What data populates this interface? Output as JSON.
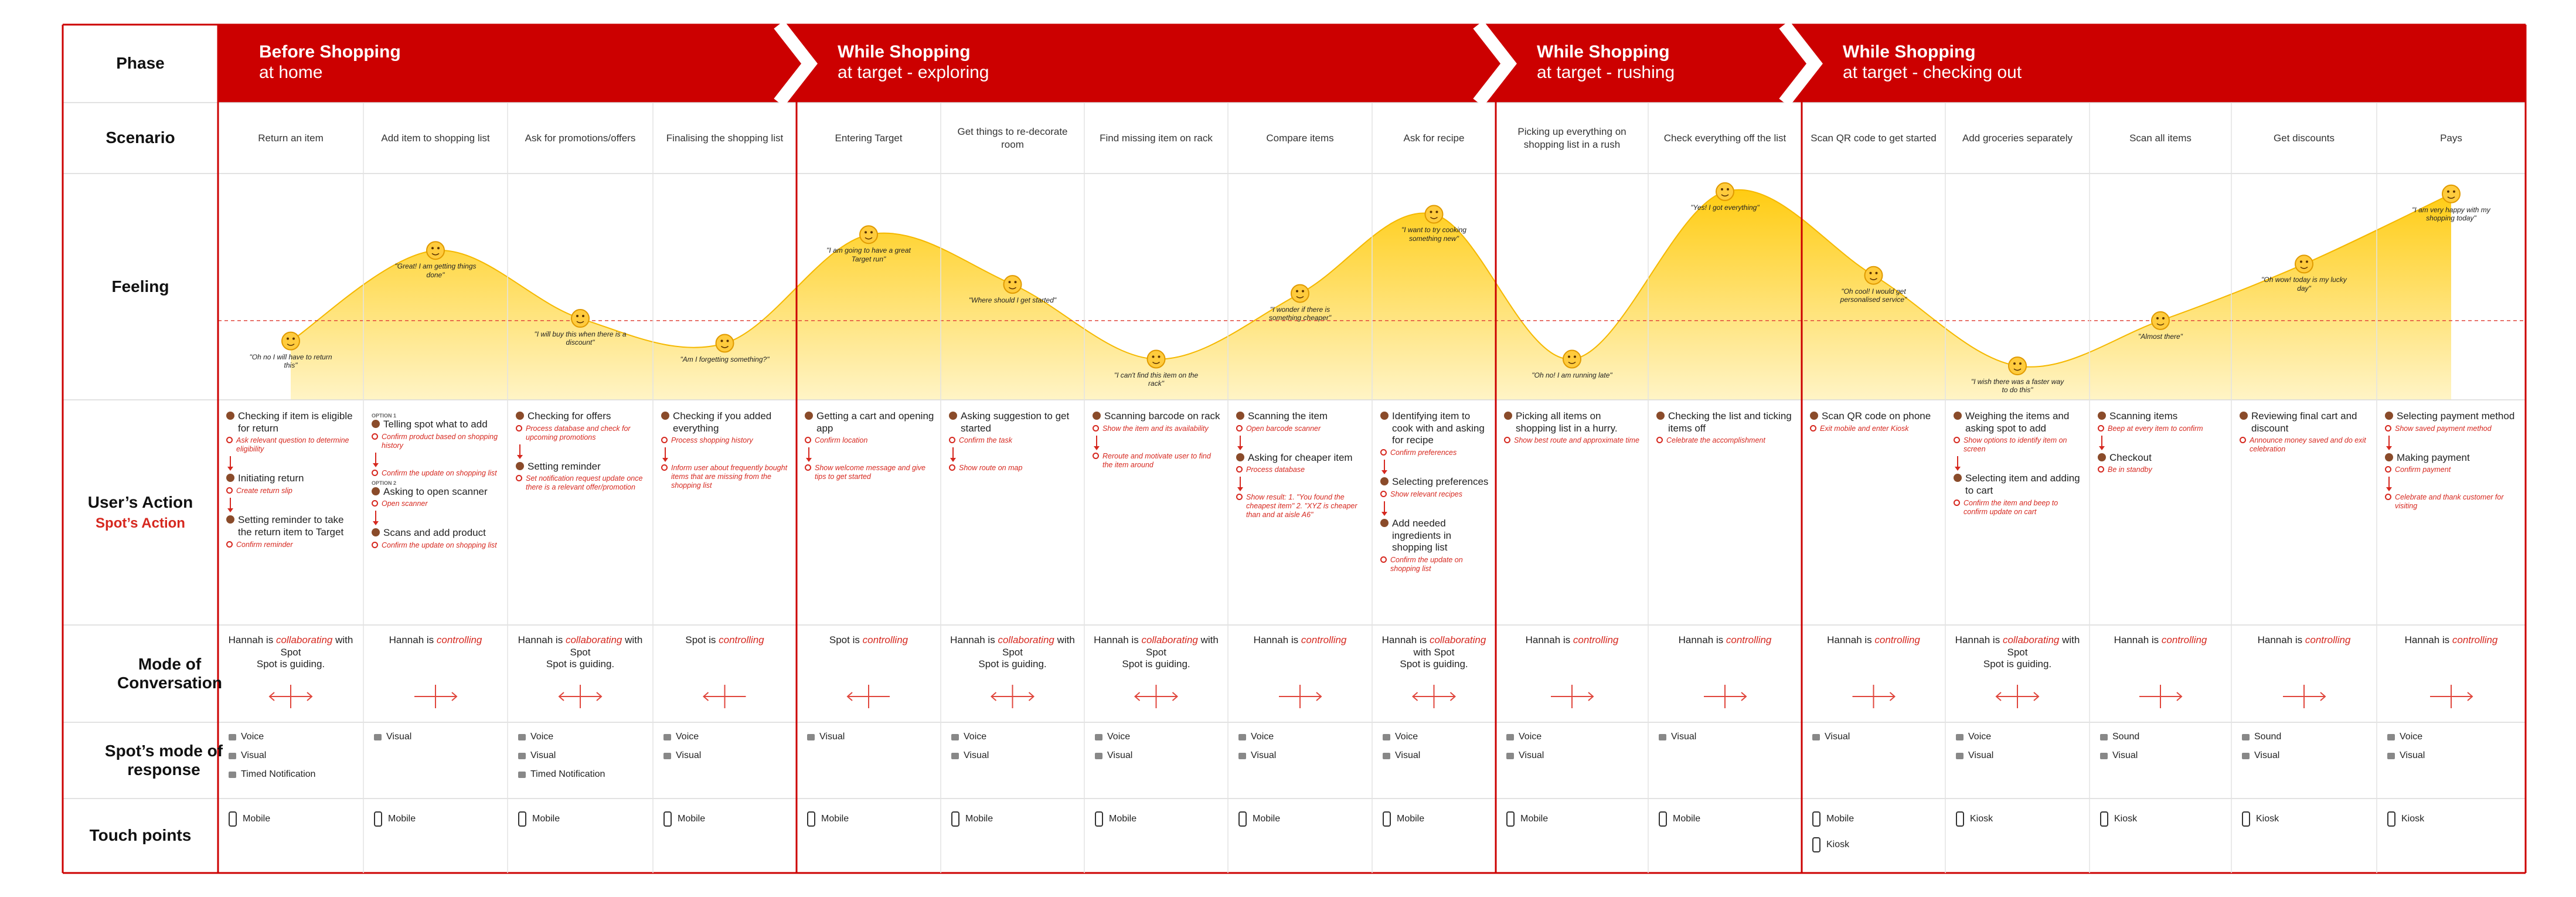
{
  "row_labels": {
    "phase": "Phase",
    "scenario": "Scenario",
    "feeling": "Feeling",
    "action": "User’s Action",
    "spot_action": "Spot’s Action",
    "mode": "Mode of Conversation",
    "response": "Spot’s mode of response",
    "touch": "Touch points"
  },
  "feeling_range": [
    0,
    100
  ],
  "feeling_baseline": 35,
  "phases": [
    {
      "title": "Before Shopping",
      "subtitle": "at home",
      "scenarios": [
        {
          "scenario": "Return an item",
          "feeling": {
            "score": 26,
            "quote": "\"Oh no I will have to return this\""
          },
          "actions": [
            {
              "action": "Checking if item is eligible for return",
              "spot": "Ask relevant question to determine eligibility"
            },
            {
              "action": "Initiating return",
              "spot": "Create return slip"
            },
            {
              "action": "Setting reminder to take the return item to Target",
              "spot": "Confirm reminder"
            }
          ],
          "mode": {
            "prefix": "Hannah is",
            "mode": "collaborating",
            "suffix": "with Spot",
            "note": "Spot is guiding.",
            "arrow": "both"
          },
          "responses": [
            "Voice",
            "Visual",
            "Timed Notification"
          ],
          "touchpoints": [
            "Mobile"
          ]
        },
        {
          "scenario": "Add item to shopping list",
          "feeling": {
            "score": 66,
            "quote": "\"Great! I am getting things done\""
          },
          "actions": [
            {
              "tag": "OPTION 1",
              "action": "Telling spot what to add",
              "spot": "Confirm product based on shopping history"
            },
            {
              "spot": "Confirm the update on shopping list"
            },
            {
              "tag": "OPTION 2",
              "action": "Asking to open scanner",
              "spot": "Open scanner"
            },
            {
              "action": "Scans and add product",
              "spot": "Confirm the update on shopping list"
            }
          ],
          "mode": {
            "prefix": "Hannah is",
            "mode": "controlling",
            "arrow": "right"
          },
          "responses": [
            "Visual"
          ],
          "touchpoints": [
            "Mobile"
          ]
        },
        {
          "scenario": "Ask for promotions/offers",
          "feeling": {
            "score": 36,
            "quote": "\"I will buy this when there is a discount\""
          },
          "actions": [
            {
              "action": "Checking for offers",
              "spot": "Process database and check for upcoming promotions"
            },
            {
              "action": "Setting reminder",
              "spot": "Set notification request update once there is a relevant offer/promotion"
            }
          ],
          "mode": {
            "prefix": "Hannah is",
            "mode": "collaborating",
            "suffix": "with Spot",
            "note": "Spot is guiding.",
            "arrow": "both"
          },
          "responses": [
            "Voice",
            "Visual",
            "Timed Notification"
          ],
          "touchpoints": [
            "Mobile"
          ]
        },
        {
          "scenario": "Finalising the shopping list",
          "feeling": {
            "score": 25,
            "quote": "\"Am I forgetting something?\""
          },
          "actions": [
            {
              "action": "Checking if you added everything",
              "spot": "Process shopping history"
            },
            {
              "spot": "Inform user about frequently bought items that are missing from the shopping list"
            }
          ],
          "mode": {
            "prefix": "Spot is",
            "mode": "controlling",
            "arrow": "left"
          },
          "responses": [
            "Voice",
            "Visual"
          ],
          "touchpoints": [
            "Mobile"
          ]
        }
      ]
    },
    {
      "title": "While Shopping",
      "subtitle": "at target - exploring",
      "scenarios": [
        {
          "scenario": "Entering Target",
          "feeling": {
            "score": 73,
            "quote": "\"I am going to have a great Target run\""
          },
          "actions": [
            {
              "action": "Getting a cart and opening app",
              "spot": "Confirm location"
            },
            {
              "spot": "Show welcome message and give tips to get started"
            }
          ],
          "mode": {
            "prefix": "Spot is",
            "mode": "controlling",
            "arrow": "left"
          },
          "responses": [
            "Visual"
          ],
          "touchpoints": [
            "Mobile"
          ]
        },
        {
          "scenario": "Get things to re-decorate room",
          "feeling": {
            "score": 51,
            "quote": "\"Where should I get started\""
          },
          "actions": [
            {
              "action": "Asking suggestion to get started",
              "spot": "Confirm the task"
            },
            {
              "spot": "Show route on map"
            }
          ],
          "mode": {
            "prefix": "Hannah is",
            "mode": "collaborating",
            "suffix": "with Spot",
            "note": "Spot is guiding.",
            "arrow": "both"
          },
          "responses": [
            "Voice",
            "Visual"
          ],
          "touchpoints": [
            "Mobile"
          ]
        },
        {
          "scenario": "Find missing item on rack",
          "feeling": {
            "score": 18,
            "quote": "\"I can't find this item on the rack\""
          },
          "actions": [
            {
              "action": "Scanning barcode on rack",
              "spot": "Show the item and its availability"
            },
            {
              "spot": "Reroute and motivate user to find the item around"
            }
          ],
          "mode": {
            "prefix": "Hannah is",
            "mode": "collaborating",
            "suffix": "with Spot",
            "note": "Spot is guiding.",
            "arrow": "both"
          },
          "responses": [
            "Voice",
            "Visual"
          ],
          "touchpoints": [
            "Mobile"
          ]
        },
        {
          "scenario": "Compare items",
          "feeling": {
            "score": 47,
            "quote": "\"I wonder if there is something cheaper\""
          },
          "actions": [
            {
              "action": "Scanning the item",
              "spot": "Open barcode scanner"
            },
            {
              "action": "Asking for cheaper item",
              "spot": "Process database"
            },
            {
              "spot": "Show result: 1. \"You found the cheapest item\" 2. \"XYZ is cheaper than and at aisle A6\""
            }
          ],
          "mode": {
            "prefix": "Hannah is",
            "mode": "controlling",
            "arrow": "right"
          },
          "responses": [
            "Voice",
            "Visual"
          ],
          "touchpoints": [
            "Mobile"
          ]
        },
        {
          "scenario": "Ask for recipe",
          "feeling": {
            "score": 82,
            "quote": "\"I want to try cooking something new\""
          },
          "actions": [
            {
              "action": "Identifying item to cook with and asking for recipe",
              "spot": "Confirm preferences"
            },
            {
              "action": "Selecting preferences",
              "spot": "Show relevant recipes"
            },
            {
              "action": "Add needed ingredients in shopping list",
              "spot": "Confirm the update on shopping list"
            }
          ],
          "mode": {
            "prefix": "Hannah is",
            "mode": "collaborating",
            "suffix": "with Spot",
            "note": "Spot is guiding.",
            "arrow": "both"
          },
          "responses": [
            "Voice",
            "Visual"
          ],
          "touchpoints": [
            "Mobile"
          ]
        }
      ]
    },
    {
      "title": "While Shopping",
      "subtitle": "at target - rushing",
      "scenarios": [
        {
          "scenario": "Picking up everything on shopping list in a rush",
          "feeling": {
            "score": 18,
            "quote": "\"Oh no! I am running late\""
          },
          "actions": [
            {
              "action": "Picking all items on shopping list in a hurry.",
              "spot": "Show best route and approximate time"
            }
          ],
          "mode": {
            "prefix": "Hannah is",
            "mode": "controlling",
            "arrow": "right"
          },
          "responses": [
            "Voice",
            "Visual"
          ],
          "touchpoints": [
            "Mobile"
          ]
        },
        {
          "scenario": "Check everything off the list",
          "feeling": {
            "score": 92,
            "quote": "\"Yes! I got everything\""
          },
          "actions": [
            {
              "action": "Checking the list and ticking items off",
              "spot": "Celebrate the accomplishment"
            }
          ],
          "mode": {
            "prefix": "Hannah is",
            "mode": "controlling",
            "arrow": "right"
          },
          "responses": [
            "Visual"
          ],
          "touchpoints": [
            "Mobile"
          ]
        }
      ]
    },
    {
      "title": "While Shopping",
      "subtitle": "at target - checking out",
      "scenarios": [
        {
          "scenario": "Scan QR code to get started",
          "feeling": {
            "score": 55,
            "quote": "\"Oh cool! I would get personalised service\""
          },
          "actions": [
            {
              "action": "Scan QR code on phone",
              "spot": "Exit mobile and enter Kiosk"
            }
          ],
          "mode": {
            "prefix": "Hannah is",
            "mode": "controlling",
            "arrow": "right"
          },
          "responses": [
            "Visual"
          ],
          "touchpoints": [
            "Mobile",
            "Kiosk"
          ]
        },
        {
          "scenario": "Add groceries separately",
          "feeling": {
            "score": 15,
            "quote": "\"I wish there was a faster way to do this\""
          },
          "actions": [
            {
              "action": "Weighing the items and asking spot to add",
              "spot": "Show options to identify item on screen"
            },
            {
              "action": "Selecting item and adding to cart",
              "spot": "Confirm the item and beep to confirm update on cart"
            }
          ],
          "mode": {
            "prefix": "Hannah is",
            "mode": "collaborating",
            "suffix": "with Spot",
            "note": "Spot is guiding.",
            "arrow": "both"
          },
          "responses": [
            "Voice",
            "Visual"
          ],
          "touchpoints": [
            "Kiosk"
          ]
        },
        {
          "scenario": "Scan all items",
          "feeling": {
            "score": 35,
            "quote": "\"Almost there\""
          },
          "actions": [
            {
              "action": "Scanning items",
              "spot": "Beep at every item to confirm"
            },
            {
              "action": "Checkout",
              "spot": "Be in standby"
            }
          ],
          "mode": {
            "prefix": "Hannah is",
            "mode": "controlling",
            "arrow": "right"
          },
          "responses": [
            "Sound",
            "Visual"
          ],
          "touchpoints": [
            "Kiosk"
          ]
        },
        {
          "scenario": "Get discounts",
          "feeling": {
            "score": 60,
            "quote": "\"Oh wow! today is my lucky day\""
          },
          "actions": [
            {
              "action": "Reviewing final cart and discount",
              "spot": "Announce money saved and do exit celebration"
            }
          ],
          "mode": {
            "prefix": "Hannah is",
            "mode": "controlling",
            "arrow": "right"
          },
          "responses": [
            "Sound",
            "Visual"
          ],
          "touchpoints": [
            "Kiosk"
          ]
        },
        {
          "scenario": "Pays",
          "feeling": {
            "score": 91,
            "quote": "\"I am very happy with my shopping today\""
          },
          "actions": [
            {
              "action": "Selecting payment method",
              "spot": "Show saved payment method"
            },
            {
              "action": "Making payment",
              "spot": "Confirm payment"
            },
            {
              "spot": "Celebrate and thank customer for visiting"
            }
          ],
          "mode": {
            "prefix": "Hannah is",
            "mode": "controlling",
            "arrow": "right"
          },
          "responses": [
            "Voice",
            "Visual"
          ],
          "touchpoints": [
            "Kiosk"
          ]
        }
      ]
    }
  ]
}
